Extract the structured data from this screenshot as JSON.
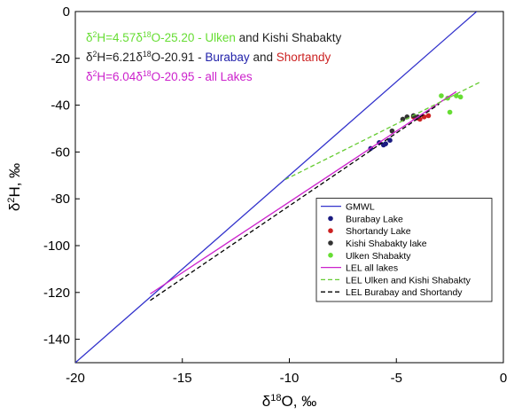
{
  "chart_data": {
    "type": "scatter",
    "xlim": [
      -20,
      0
    ],
    "ylim": [
      -150,
      0
    ],
    "xticks": [
      -20,
      -15,
      -10,
      -5,
      0
    ],
    "yticks": [
      0,
      -20,
      -40,
      -60,
      -80,
      -100,
      -120,
      -140
    ],
    "legend": "lower right",
    "x_label": [
      {
        "text": "δ"
      },
      {
        "text": "18",
        "sup": true
      },
      {
        "text": "O, ‰"
      }
    ],
    "y_label": [
      {
        "text": "δ"
      },
      {
        "text": "2",
        "sup": true
      },
      {
        "text": "H, ‰"
      }
    ],
    "annotations": [
      [
        {
          "text": "δ",
          "color": "#66dd33"
        },
        {
          "text": "2",
          "sup": true,
          "color": "#66dd33"
        },
        {
          "text": "H=4.57δ",
          "color": "#66dd33"
        },
        {
          "text": "18",
          "sup": true,
          "color": "#66dd33"
        },
        {
          "text": "O-25.20 - Ulken",
          "color": "#66dd33"
        },
        {
          "text": " and Kishi Shabakty",
          "color": "#222222"
        }
      ],
      [
        {
          "text": "δ",
          "color": "#222222"
        },
        {
          "text": "2",
          "sup": true,
          "color": "#222222"
        },
        {
          "text": "H=6.21δ",
          "color": "#222222"
        },
        {
          "text": "18",
          "sup": true,
          "color": "#222222"
        },
        {
          "text": "O-20.91 - ",
          "color": "#222222"
        },
        {
          "text": "Burabay",
          "color": "#2222aa"
        },
        {
          "text": " and ",
          "color": "#222222"
        },
        {
          "text": "Shortandy",
          "color": "#cc2222"
        }
      ],
      [
        {
          "text": "δ",
          "color": "#cc22cc"
        },
        {
          "text": "2",
          "sup": true,
          "color": "#cc22cc"
        },
        {
          "text": "H=6.04δ",
          "color": "#cc22cc"
        },
        {
          "text": "18",
          "sup": true,
          "color": "#cc22cc"
        },
        {
          "text": "O-20.95 - all Lakes",
          "color": "#cc22cc"
        }
      ]
    ],
    "series": [
      {
        "name": "GMWL",
        "mode": "line",
        "color": "#3333cc",
        "x": [
          -20,
          -1.25
        ],
        "y": [
          -150,
          0
        ]
      },
      {
        "name": "Burabay Lake",
        "mode": "points",
        "color": "#1a1a80",
        "x": [
          -6.2,
          -5.8,
          -5.6,
          -5.5,
          -5.3
        ],
        "y": [
          -58.5,
          -56,
          -57,
          -56.5,
          -55
        ]
      },
      {
        "name": "Shortandy Lake",
        "mode": "points",
        "color": "#cc2222",
        "x": [
          -4.2,
          -4.0,
          -3.7,
          -3.5,
          -3.9
        ],
        "y": [
          -45,
          -45.5,
          -45,
          -44.5,
          -46
        ]
      },
      {
        "name": "Kishi Shabakty lake",
        "mode": "points",
        "color": "#333333",
        "x": [
          -5.2,
          -4.7,
          -4.5,
          -4.2,
          -4.0
        ],
        "y": [
          -51,
          -46,
          -45,
          -44.5,
          -45
        ]
      },
      {
        "name": "Ulken Shabakty",
        "mode": "points",
        "color": "#66dd33",
        "x": [
          -2.9,
          -2.6,
          -2.5,
          -2.2,
          -2.0
        ],
        "y": [
          -36,
          -37,
          -43,
          -36,
          -36.5
        ]
      },
      {
        "name": "LEL all lakes",
        "mode": "line",
        "color": "#cc22cc",
        "x": [
          -16.5,
          -2.2
        ],
        "y": [
          -120.6,
          -34.2
        ]
      },
      {
        "name": "LEL Ulken and Kishi Shabakty",
        "mode": "line",
        "dash": true,
        "color": "#66cc33",
        "x": [
          -10.2,
          -1.1
        ],
        "y": [
          -71.8,
          -30.2
        ]
      },
      {
        "name": "LEL Burabay and Shortandy",
        "mode": "line",
        "dash": true,
        "color": "#000000",
        "x": [
          -16.5,
          -3.0
        ],
        "y": [
          -123.4,
          -39.5
        ]
      }
    ]
  }
}
